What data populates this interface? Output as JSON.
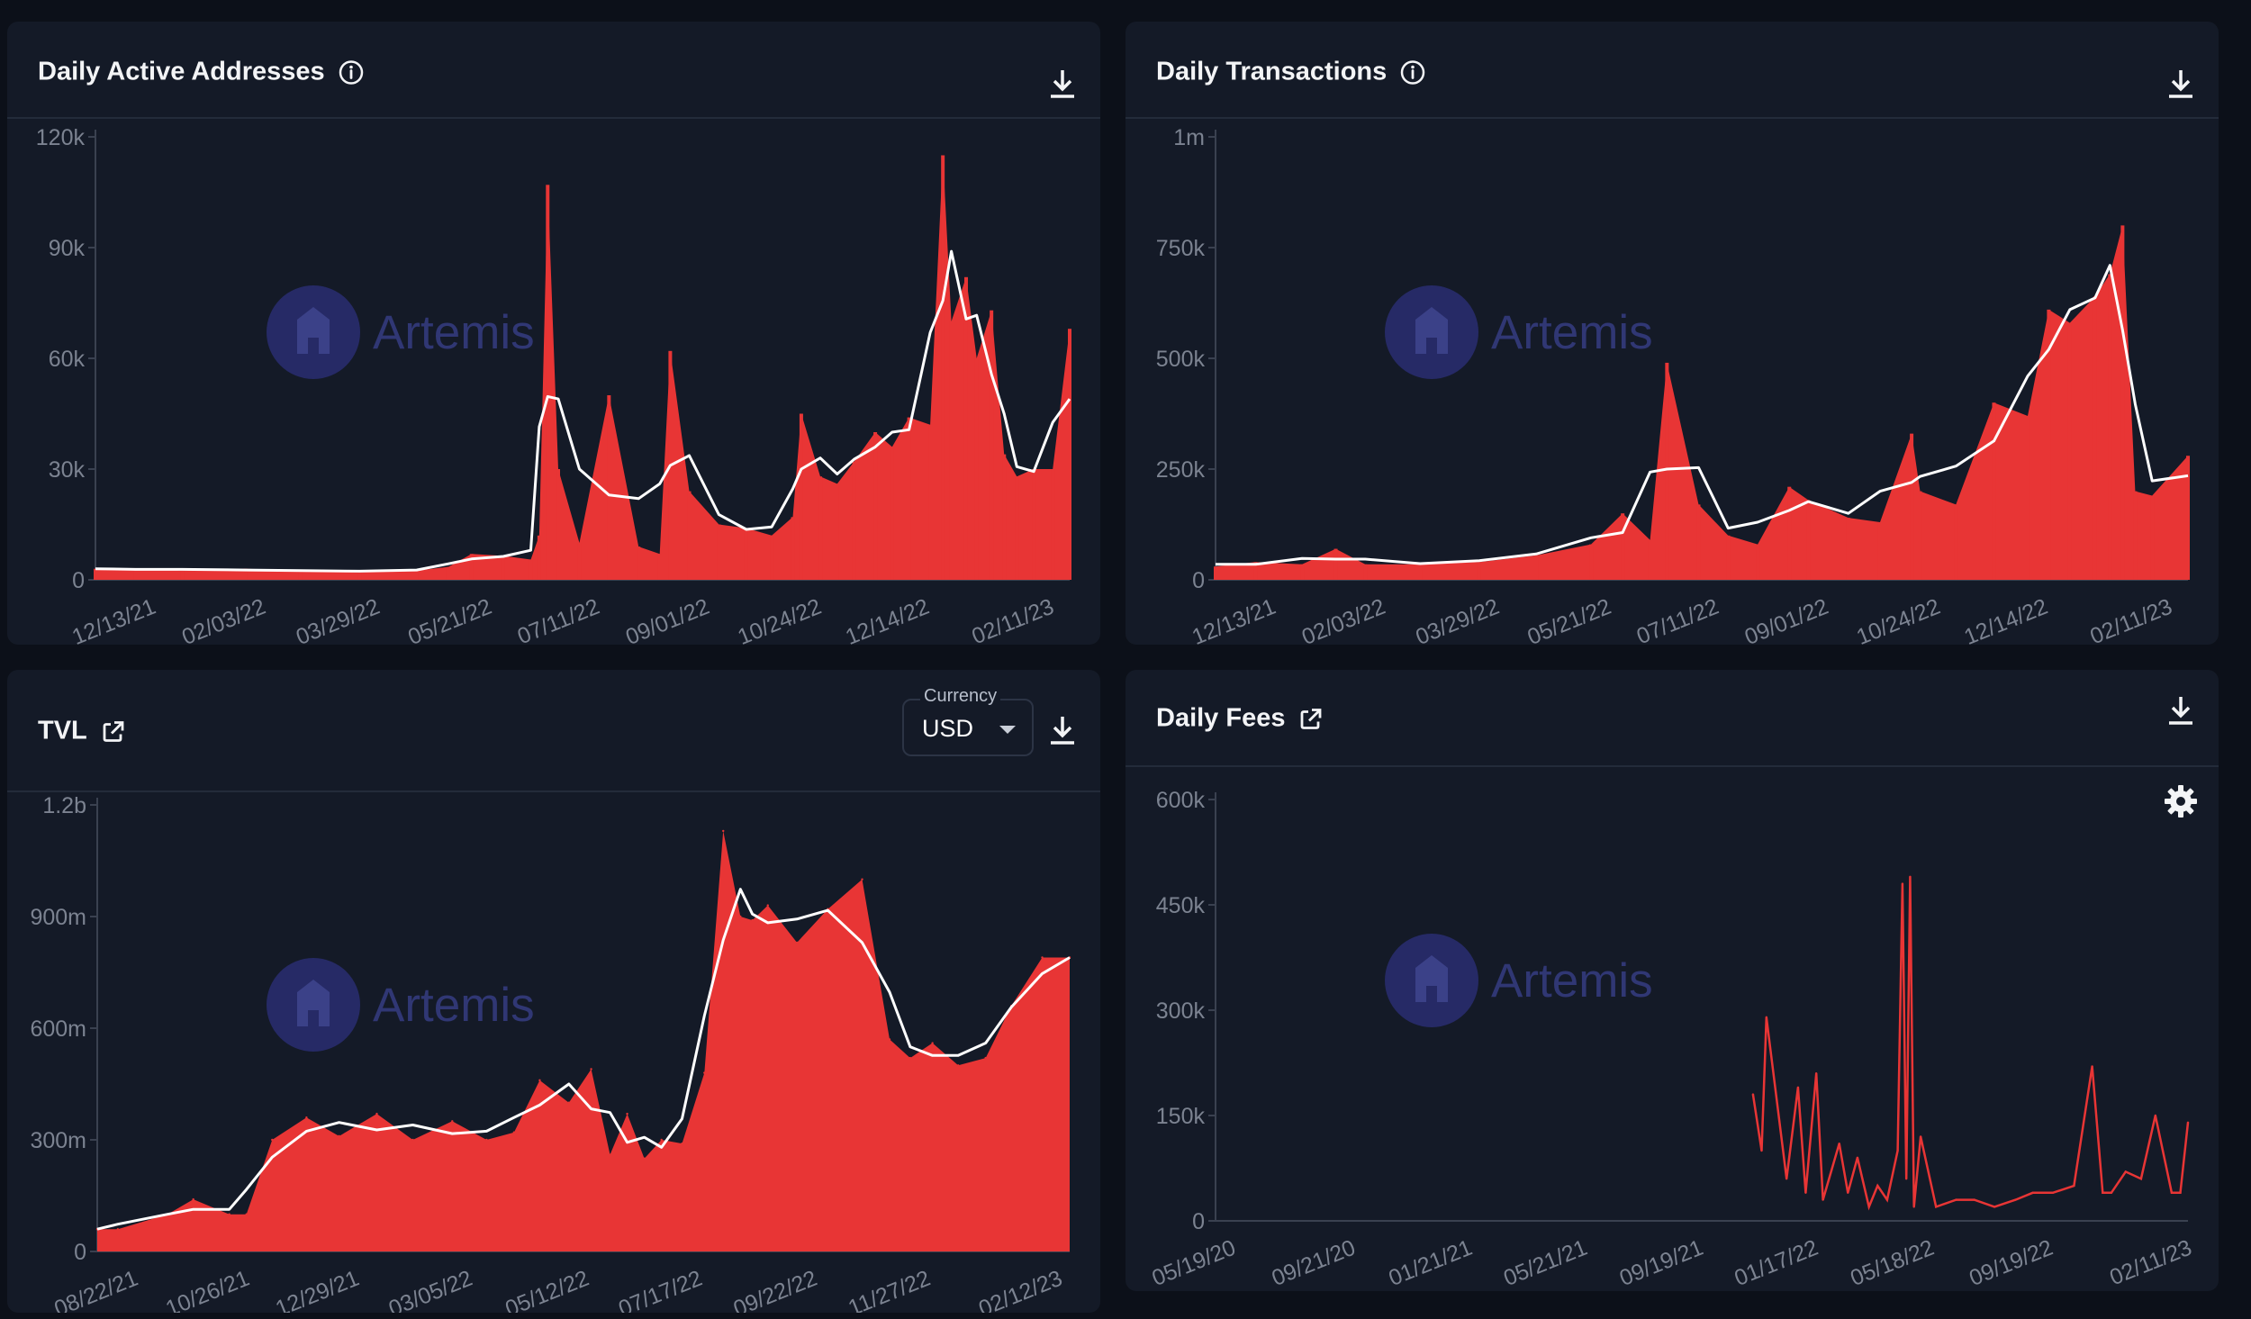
{
  "colors": {
    "background": "#0c1019",
    "panel": "#141a27",
    "bar": "#e83535",
    "moving_average": "#ffffff",
    "axis_text": "#7c8391",
    "watermark": "#303774"
  },
  "watermark": {
    "text": "Artemis",
    "icon": "artemis-logo-icon"
  },
  "panels": [
    {
      "title": "Daily Active Addresses",
      "title_icon": "info-icon",
      "action_icon": "download-icon"
    },
    {
      "title": "Daily Transactions",
      "title_icon": "info-icon",
      "action_icon": "download-icon"
    },
    {
      "title": "TVL",
      "title_icon": "external-link-icon",
      "action_icon": "download-icon",
      "currency": {
        "label": "Currency",
        "value": "USD"
      }
    },
    {
      "title": "Daily Fees",
      "title_icon": "external-link-icon",
      "action_icon": "download-icon",
      "settings_icon": "gear-icon"
    }
  ],
  "chart_data": [
    {
      "type": "bar",
      "title": "Daily Active Addresses",
      "overlay": "moving-average line",
      "ylim": [
        0,
        120000
      ],
      "y_ticks": [
        "0",
        "30k",
        "60k",
        "90k",
        "120k"
      ],
      "x_ticks": [
        "12/13/21",
        "02/03/22",
        "03/29/22",
        "05/21/22",
        "07/11/22",
        "09/01/22",
        "10/24/22",
        "12/14/22",
        "02/11/23"
      ],
      "series": [
        {
          "x": [
            "11/24/21",
            "12/13/21",
            "01/04/22",
            "02/03/22",
            "03/01/22",
            "03/29/22",
            "04/25/22",
            "05/10/22",
            "05/21/22",
            "06/05/22",
            "06/18/22",
            "06/22/22",
            "06/26/22",
            "07/01/22",
            "07/11/22",
            "07/25/22",
            "08/08/22",
            "08/18/22",
            "08/23/22",
            "09/01/22",
            "09/15/22",
            "09/28/22",
            "10/10/22",
            "10/20/22",
            "10/24/22",
            "11/02/22",
            "11/10/22",
            "11/18/22",
            "11/28/22",
            "12/06/22",
            "12/14/22",
            "12/24/22",
            "12/30/22",
            "01/03/23",
            "01/10/23",
            "01/15/23",
            "01/22/23",
            "01/28/23",
            "02/03/23",
            "02/11/23",
            "02/20/23",
            "02/28/23"
          ],
          "values": [
            3000,
            3000,
            2500,
            3000,
            2500,
            2000,
            2500,
            3500,
            7000,
            6500,
            5500,
            12000,
            107000,
            30000,
            10000,
            50000,
            9000,
            7000,
            62000,
            24000,
            15000,
            14000,
            12000,
            17000,
            45000,
            28000,
            26000,
            32000,
            40000,
            36000,
            44000,
            42000,
            115000,
            70000,
            82000,
            60000,
            73000,
            34000,
            28000,
            30000,
            30000,
            68000
          ]
        }
      ]
    },
    {
      "type": "bar",
      "title": "Daily Transactions",
      "overlay": "moving-average line",
      "ylim": [
        0,
        1000000
      ],
      "y_ticks": [
        "0",
        "250k",
        "500k",
        "750k",
        "1m"
      ],
      "x_ticks": [
        "12/13/21",
        "02/03/22",
        "03/29/22",
        "05/21/22",
        "07/11/22",
        "09/01/22",
        "10/24/22",
        "12/14/22",
        "02/11/23"
      ],
      "series": [
        {
          "x": [
            "11/24/21",
            "12/13/21",
            "01/04/22",
            "01/20/22",
            "02/03/22",
            "03/01/22",
            "03/29/22",
            "04/25/22",
            "05/21/22",
            "06/05/22",
            "06/18/22",
            "06/26/22",
            "07/11/22",
            "07/25/22",
            "08/08/22",
            "08/23/22",
            "09/01/22",
            "09/20/22",
            "10/05/22",
            "10/20/22",
            "10/24/22",
            "11/10/22",
            "11/28/22",
            "12/14/22",
            "12/24/22",
            "01/03/23",
            "01/15/23",
            "01/22/23",
            "01/28/23",
            "02/03/23",
            "02/11/23",
            "02/28/23"
          ],
          "values": [
            30000,
            40000,
            35000,
            70000,
            35000,
            35000,
            40000,
            55000,
            80000,
            150000,
            90000,
            490000,
            170000,
            100000,
            80000,
            210000,
            180000,
            140000,
            130000,
            330000,
            200000,
            170000,
            400000,
            370000,
            610000,
            580000,
            640000,
            690000,
            800000,
            200000,
            190000,
            280000
          ]
        }
      ]
    },
    {
      "type": "area",
      "title": "TVL",
      "overlay": "moving-average line",
      "ylim": [
        0,
        1200000000
      ],
      "y_ticks": [
        "0",
        "300m",
        "600m",
        "900m",
        "1.2b"
      ],
      "x_ticks": [
        "08/22/21",
        "10/26/21",
        "12/29/21",
        "03/05/22",
        "05/12/22",
        "07/17/22",
        "09/22/22",
        "11/27/22",
        "02/12/23"
      ],
      "series": [
        {
          "x": [
            "08/10/21",
            "08/22/21",
            "09/20/21",
            "10/05/21",
            "10/26/21",
            "11/05/21",
            "11/20/21",
            "12/10/21",
            "12/29/21",
            "01/20/22",
            "02/10/22",
            "03/05/22",
            "03/25/22",
            "04/10/22",
            "04/25/22",
            "05/12/22",
            "05/25/22",
            "06/05/22",
            "06/15/22",
            "06/25/22",
            "07/05/22",
            "07/17/22",
            "07/30/22",
            "08/10/22",
            "08/20/22",
            "08/27/22",
            "09/05/22",
            "09/22/22",
            "10/10/22",
            "10/30/22",
            "11/15/22",
            "11/27/22",
            "12/10/22",
            "12/25/22",
            "01/10/23",
            "01/25/23",
            "02/12/23",
            "02/28/23"
          ],
          "values": [
            60000000,
            60000000,
            100000000,
            140000000,
            100000000,
            100000000,
            300000000,
            360000000,
            310000000,
            370000000,
            300000000,
            350000000,
            300000000,
            320000000,
            460000000,
            400000000,
            490000000,
            260000000,
            370000000,
            250000000,
            300000000,
            290000000,
            480000000,
            1130000000,
            900000000,
            890000000,
            930000000,
            830000000,
            920000000,
            1000000000,
            570000000,
            520000000,
            560000000,
            500000000,
            520000000,
            660000000,
            790000000,
            790000000
          ]
        }
      ]
    },
    {
      "type": "line",
      "title": "Daily Fees",
      "ylim": [
        0,
        600000
      ],
      "y_ticks": [
        "0",
        "150k",
        "300k",
        "450k",
        "600k"
      ],
      "x_ticks": [
        "05/19/20",
        "09/21/20",
        "01/21/21",
        "05/21/21",
        "09/19/21",
        "01/17/22",
        "05/18/22",
        "09/19/22",
        "02/11/23"
      ],
      "series": [
        {
          "x": [
            "12/01/21",
            "12/10/21",
            "12/15/21",
            "01/05/22",
            "01/17/22",
            "01/25/22",
            "02/05/22",
            "02/12/22",
            "03/01/22",
            "03/10/22",
            "03/20/22",
            "04/01/22",
            "04/10/22",
            "04/20/22",
            "05/01/22",
            "05/06/22",
            "05/10/22",
            "05/14/22",
            "05/18/22",
            "05/25/22",
            "06/10/22",
            "07/01/22",
            "07/20/22",
            "08/10/22",
            "09/01/22",
            "09/19/22",
            "10/10/22",
            "11/01/22",
            "11/20/22",
            "12/01/22",
            "12/10/22",
            "12/25/22",
            "01/10/23",
            "01/25/23",
            "02/11/23",
            "02/20/23",
            "02/28/23"
          ],
          "values": [
            180000,
            100000,
            290000,
            60000,
            190000,
            40000,
            210000,
            30000,
            110000,
            40000,
            90000,
            20000,
            50000,
            30000,
            100000,
            480000,
            60000,
            490000,
            20000,
            120000,
            20000,
            30000,
            30000,
            20000,
            30000,
            40000,
            40000,
            50000,
            220000,
            40000,
            40000,
            70000,
            60000,
            150000,
            40000,
            40000,
            140000
          ]
        }
      ]
    }
  ]
}
